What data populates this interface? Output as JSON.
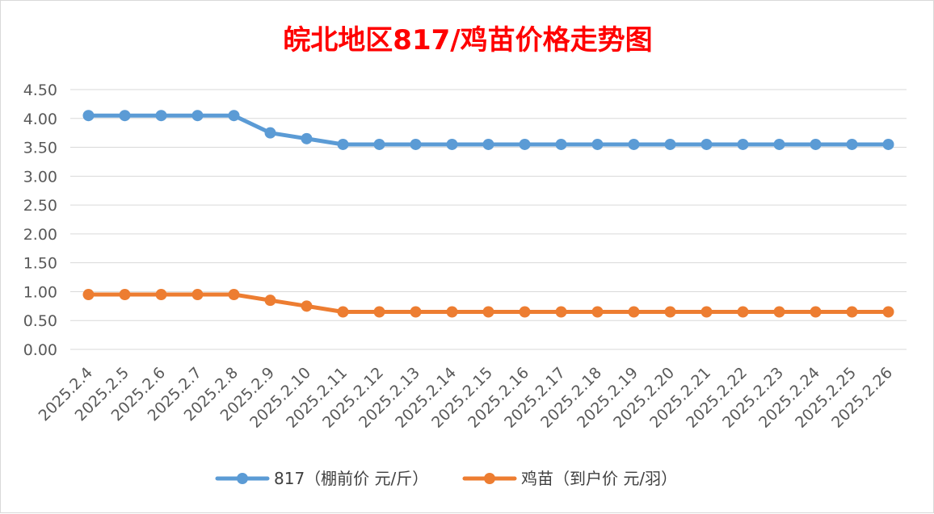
{
  "chart_data": {
    "type": "line",
    "title": "皖北地区817/鸡苗价格走势图",
    "title_color": "#ff0000",
    "xlabel": "",
    "ylabel": "",
    "ylim": [
      0,
      4.5
    ],
    "y_ticks": [
      "0.00",
      "0.50",
      "1.00",
      "1.50",
      "2.00",
      "2.50",
      "3.00",
      "3.50",
      "4.00",
      "4.50"
    ],
    "grid": true,
    "legend_position": "bottom",
    "categories": [
      "2025.2.4",
      "2025.2.5",
      "2025.2.6",
      "2025.2.7",
      "2025.2.8",
      "2025.2.9",
      "2025.2.10",
      "2025.2.11",
      "2025.2.12",
      "2025.2.13",
      "2025.2.14",
      "2025.2.15",
      "2025.2.16",
      "2025.2.17",
      "2025.2.18",
      "2025.2.19",
      "2025.2.20",
      "2025.2.21",
      "2025.2.22",
      "2025.2.23",
      "2025.2.24",
      "2025.2.25",
      "2025.2.26"
    ],
    "series": [
      {
        "name": "817（棚前价 元/斤）",
        "color": "#5b9bd5",
        "values": [
          4.05,
          4.05,
          4.05,
          4.05,
          4.05,
          3.75,
          3.65,
          3.55,
          3.55,
          3.55,
          3.55,
          3.55,
          3.55,
          3.55,
          3.55,
          3.55,
          3.55,
          3.55,
          3.55,
          3.55,
          3.55,
          3.55,
          3.55
        ]
      },
      {
        "name": "鸡苗（到户价 元/羽）",
        "color": "#ed7d31",
        "values": [
          0.95,
          0.95,
          0.95,
          0.95,
          0.95,
          0.85,
          0.75,
          0.65,
          0.65,
          0.65,
          0.65,
          0.65,
          0.65,
          0.65,
          0.65,
          0.65,
          0.65,
          0.65,
          0.65,
          0.65,
          0.65,
          0.65,
          0.65
        ]
      }
    ]
  }
}
